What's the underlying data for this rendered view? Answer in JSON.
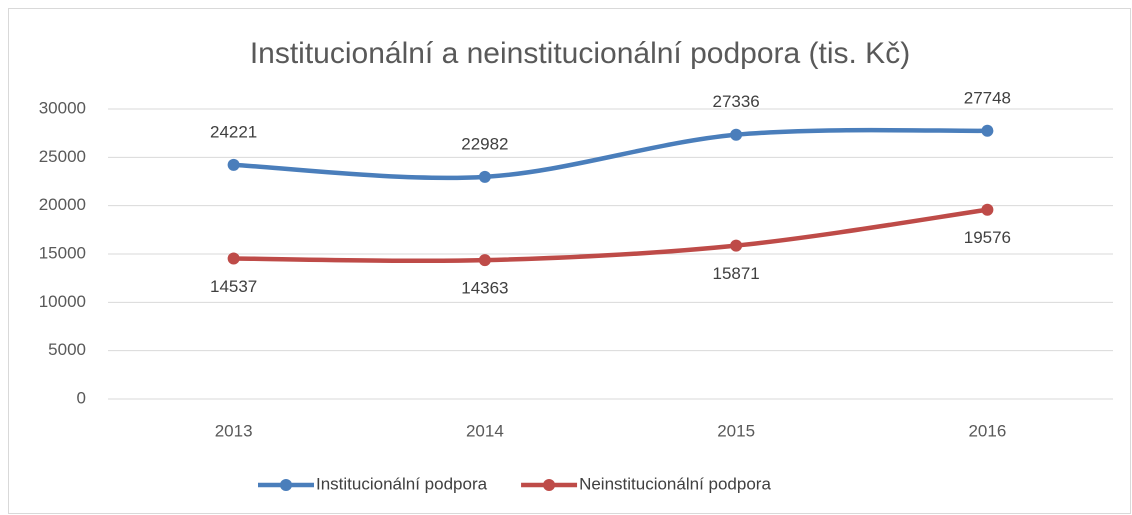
{
  "chart_data": {
    "type": "line",
    "title": "Institucionální a neinstitucionální podpora (tis. Kč)",
    "categories": [
      "2013",
      "2014",
      "2015",
      "2016"
    ],
    "series": [
      {
        "name": "Institucionální podpora",
        "color": "#4a7ebb",
        "values": [
          24221,
          22982,
          27336,
          27748
        ]
      },
      {
        "name": "Neinstitucionální podpora",
        "color": "#be4b48",
        "values": [
          14537,
          14363,
          15871,
          19576
        ]
      }
    ],
    "ylim": [
      0,
      30000
    ],
    "yticks": [
      0,
      5000,
      10000,
      15000,
      20000,
      25000,
      30000
    ],
    "grid": true,
    "legend": "bottom",
    "smooth": true
  }
}
